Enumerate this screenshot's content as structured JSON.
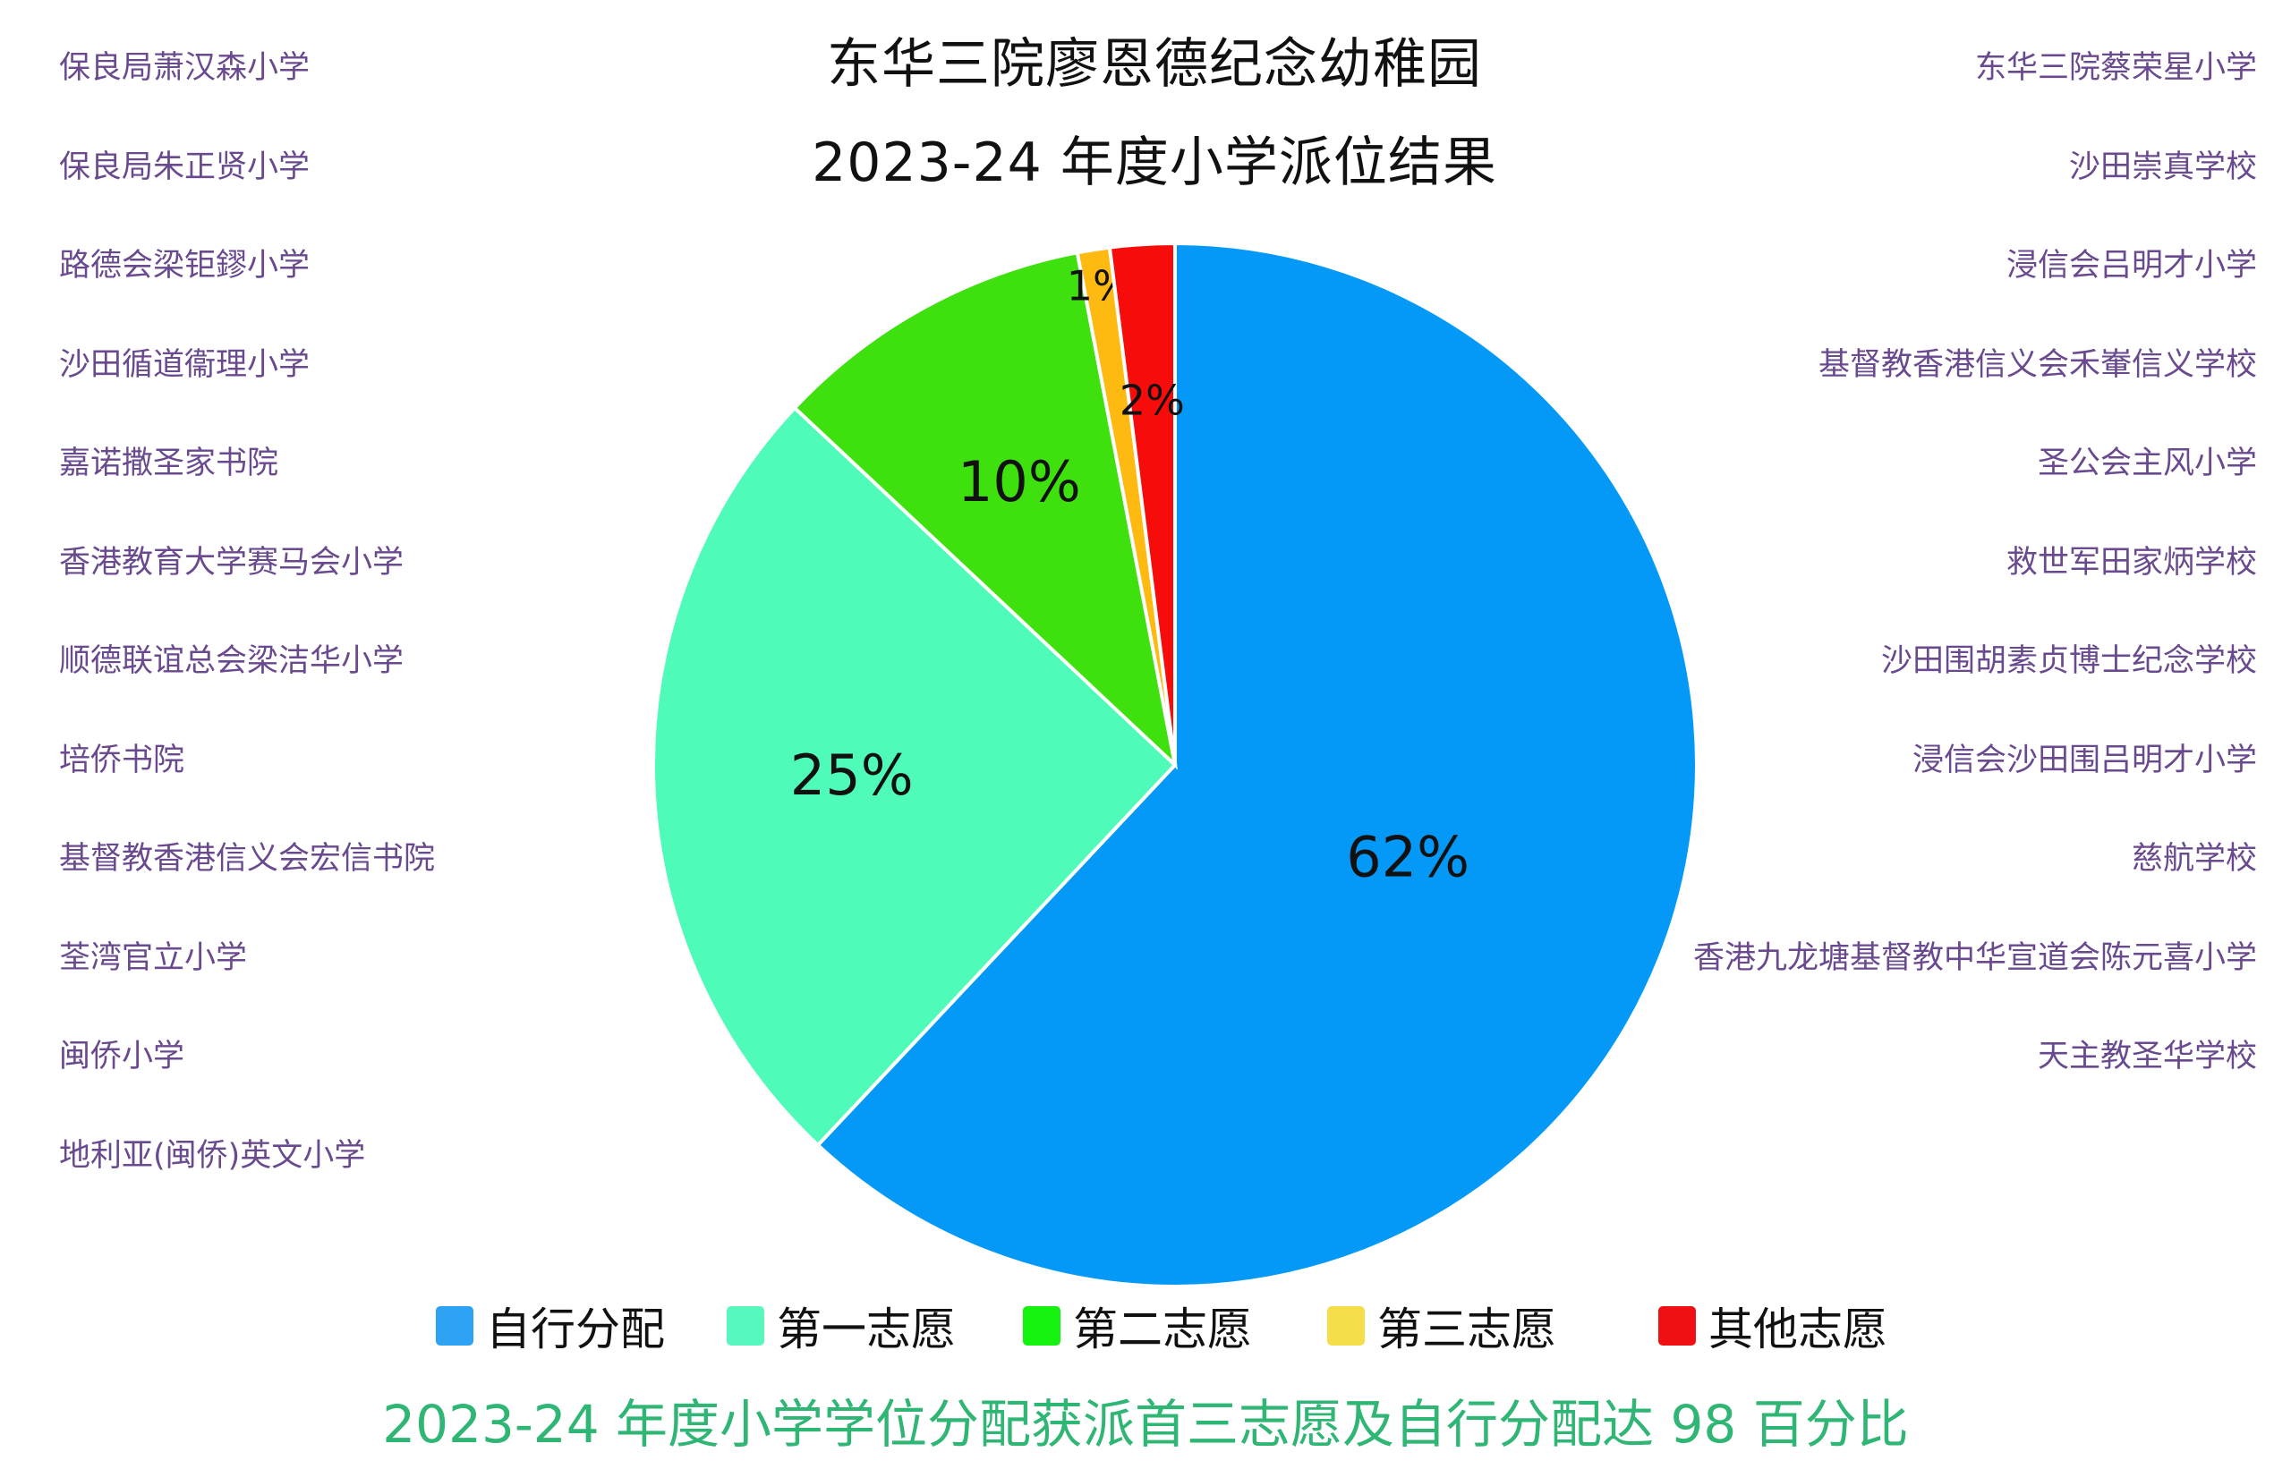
{
  "title_line1": "东华三院廖恩德纪念幼稚园",
  "title_line2": "2023-24 年度小学派位结果",
  "schools_left": [
    "保良局萧汉森小学",
    "保良局朱正贤小学",
    "路德会梁钜鏐小学",
    "沙田循道衞理小学",
    "嘉诺撒圣家书院",
    "香港教育大学赛马会小学",
    "顺德联谊总会梁洁华小学",
    "培侨书院",
    "基督教香港信义会宏信书院",
    "荃湾官立小学",
    "闽侨小学",
    "地利亚(闽侨)英文小学"
  ],
  "schools_right": [
    "东华三院蔡荣星小学",
    "沙田崇真学校",
    "浸信会吕明才小学",
    "基督教香港信义会禾輋信义学校",
    "圣公会主风小学",
    "救世军田家炳学校",
    "沙田围胡素贞博士纪念学校",
    "浸信会沙田围吕明才小学",
    "慈航学校",
    "香港九龙塘基督教中华宣道会陈元喜小学",
    "天主教圣华学校"
  ],
  "chart_data": {
    "type": "pie",
    "start": "12 o'clock",
    "direction": "clockwise",
    "slices": [
      {
        "label": "自行分配",
        "value": 62,
        "display": "62%",
        "color": "#0599f7"
      },
      {
        "label": "第一志愿",
        "value": 25,
        "display": "25%",
        "color": "#4efbb8"
      },
      {
        "label": "第二志愿",
        "value": 10,
        "display": "10%",
        "color": "#3ee10e"
      },
      {
        "label": "第三志愿",
        "value": 1,
        "display": "1%",
        "color": "#ffba12"
      },
      {
        "label": "其他志愿",
        "value": 2,
        "display": "2%",
        "color": "#f70c0c"
      }
    ],
    "legend": {
      "position": "bottom",
      "items": [
        {
          "label": "自行分配",
          "color": "#2ea3f3"
        },
        {
          "label": "第一志愿",
          "color": "#57f7bd"
        },
        {
          "label": "第二志愿",
          "color": "#15f20f"
        },
        {
          "label": "第三志愿",
          "color": "#f6de4a"
        },
        {
          "label": "其他志愿",
          "color": "#f00f13"
        }
      ]
    }
  },
  "footer": "2023-24 年度小学学位分配获派首三志愿及自行分配达 98 百分比"
}
